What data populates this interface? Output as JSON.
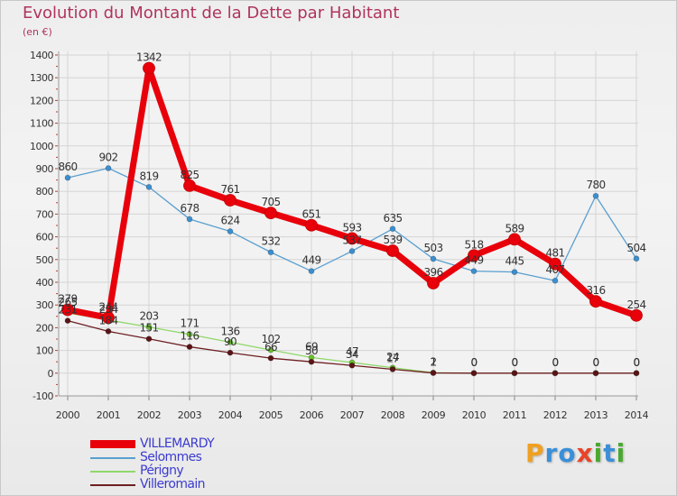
{
  "header": {
    "title": "Evolution du Montant de la Dette par Habitant",
    "subtitle": "(en €)"
  },
  "logo": {
    "letters": [
      {
        "ch": "P",
        "color": "#f0a020"
      },
      {
        "ch": "r",
        "color": "#3a8fd8"
      },
      {
        "ch": "o",
        "color": "#3a8fd8"
      },
      {
        "ch": "x",
        "color": "#e8442a"
      },
      {
        "ch": "i",
        "color": "#4aa830"
      },
      {
        "ch": "t",
        "color": "#3a8fd8"
      },
      {
        "ch": "i",
        "color": "#4aa830"
      }
    ]
  },
  "chart_data": {
    "type": "line",
    "x": [
      "2000",
      "2001",
      "2002",
      "2003",
      "2004",
      "2005",
      "2006",
      "2007",
      "2008",
      "2009",
      "2010",
      "2011",
      "2012",
      "2013",
      "2014"
    ],
    "ylim": [
      -100,
      1400
    ],
    "yticks": [
      -100,
      0,
      100,
      200,
      300,
      400,
      500,
      600,
      700,
      800,
      900,
      1000,
      1100,
      1200,
      1300,
      1400
    ],
    "grid": true,
    "legend_position": "bottom-left",
    "series": [
      {
        "name": "VILLEMARDY",
        "color": "#e8000b",
        "values": [
          279,
          244,
          1342,
          825,
          761,
          705,
          651,
          593,
          539,
          396,
          518,
          589,
          481,
          316,
          254
        ],
        "labels": [
          "279",
          "244",
          "1342",
          "825",
          "761",
          "705",
          "651",
          "593",
          "539",
          "396",
          "518",
          "589",
          "481",
          "316",
          "254"
        ]
      },
      {
        "name": "Selommes",
        "color": "#5a9fcf",
        "values": [
          860,
          902,
          819,
          678,
          624,
          532,
          449,
          537,
          635,
          503,
          449,
          445,
          407,
          780,
          504
        ],
        "labels": [
          "860",
          "902",
          "819",
          "678",
          "624",
          "532",
          "449",
          "537",
          "635",
          "503",
          "449",
          "445",
          "407",
          "780",
          "504"
        ]
      },
      {
        "name": "Périgny",
        "color": "#8fd86a",
        "values": [
          265,
          234,
          203,
          171,
          136,
          102,
          69,
          47,
          24,
          2,
          0,
          0,
          0,
          0,
          0
        ],
        "labels": [
          "265",
          "234",
          "203",
          "171",
          "136",
          "102",
          "69",
          "47",
          "24",
          "2",
          "0",
          "0",
          "0",
          "0",
          "0"
        ]
      },
      {
        "name": "Villeromain",
        "color": "#6e1f22",
        "values": [
          231,
          184,
          151,
          116,
          90,
          66,
          50,
          34,
          17,
          1,
          0,
          0,
          0,
          0,
          0
        ],
        "labels": [
          "231",
          "184",
          "151",
          "116",
          "90",
          "66",
          "50",
          "34",
          "17",
          "1",
          "0",
          "0",
          "0",
          "0",
          "0"
        ]
      }
    ]
  }
}
